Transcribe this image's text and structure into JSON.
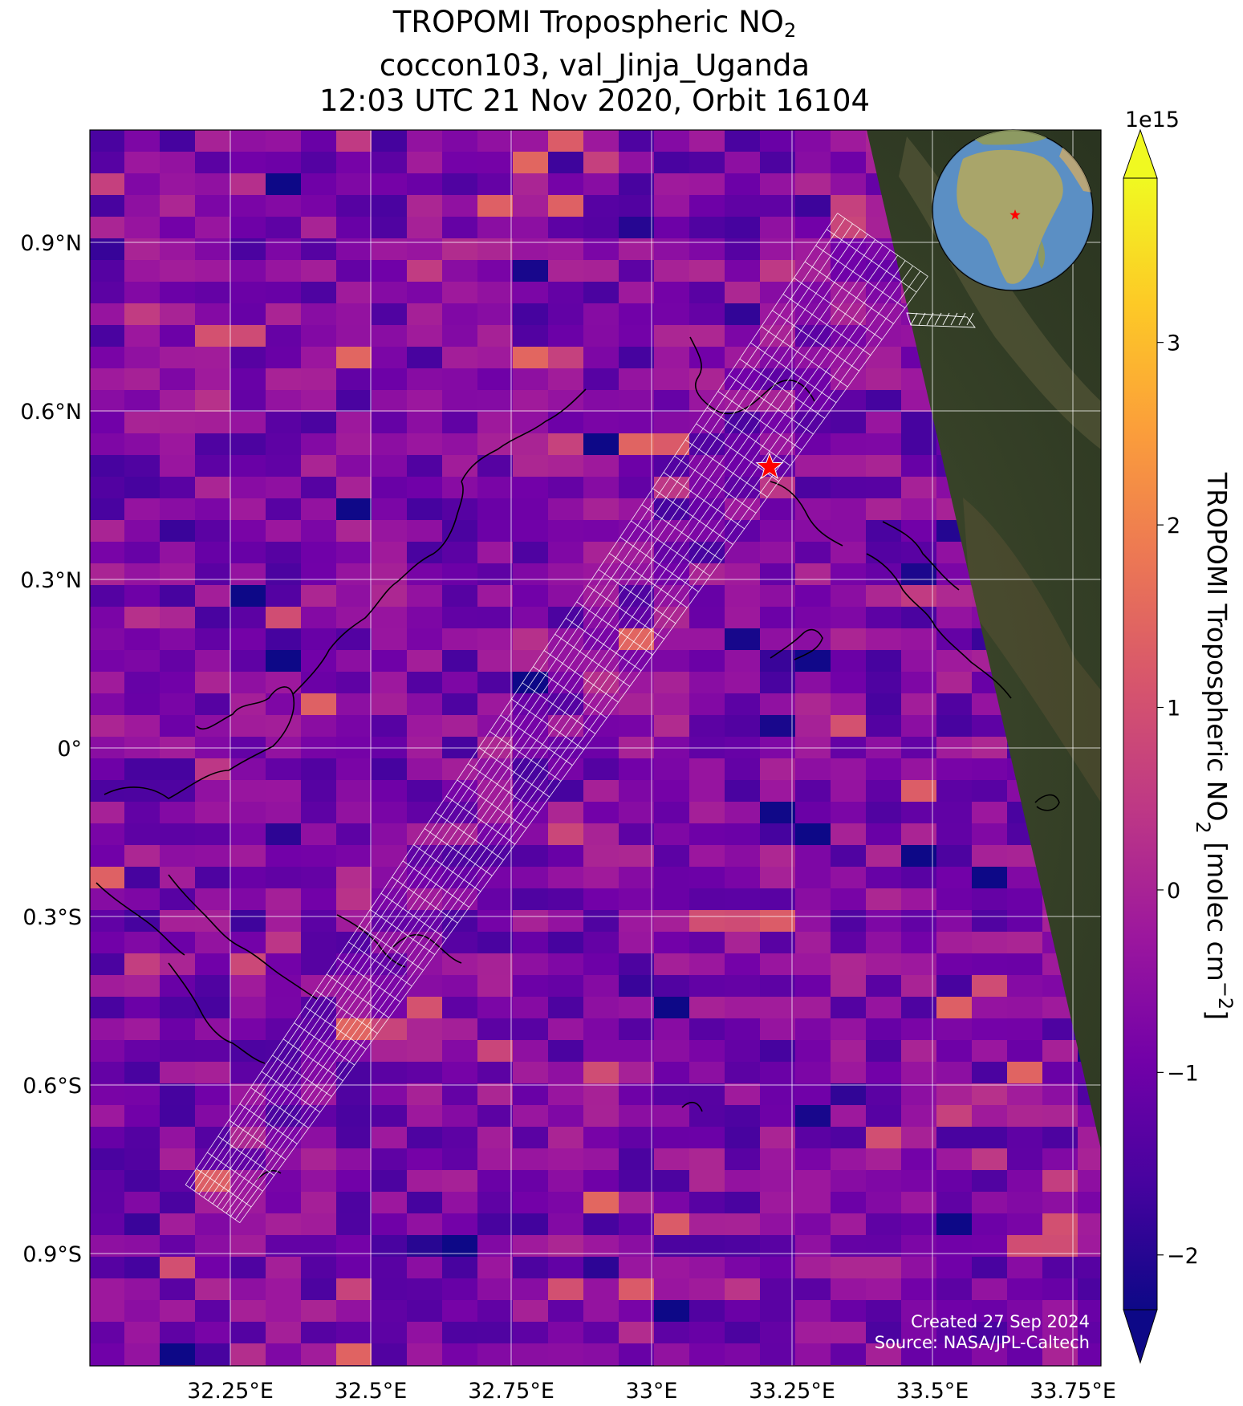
{
  "title": {
    "line1_prefix": "TROPOMI Tropospheric NO",
    "line1_sub": "2",
    "line2": "coccon103, val_Jinja_Uganda",
    "line3": "12:03 UTC 21 Nov 2020, Orbit 16104"
  },
  "map": {
    "lon_range": [
      32.0,
      33.8
    ],
    "lat_range": [
      -1.1,
      1.1
    ],
    "lon_ticks": [
      {
        "value": 32.25,
        "label": "32.25°E"
      },
      {
        "value": 32.5,
        "label": "32.5°E"
      },
      {
        "value": 32.75,
        "label": "32.75°E"
      },
      {
        "value": 33.0,
        "label": "33°E"
      },
      {
        "value": 33.25,
        "label": "33.25°E"
      },
      {
        "value": 33.5,
        "label": "33.5°E"
      },
      {
        "value": 33.75,
        "label": "33.75°E"
      }
    ],
    "lat_ticks": [
      {
        "value": 0.9,
        "label": "0.9°N"
      },
      {
        "value": 0.6,
        "label": "0.6°N"
      },
      {
        "value": 0.3,
        "label": "0.3°N"
      },
      {
        "value": 0.0,
        "label": "0°"
      },
      {
        "value": -0.3,
        "label": "0.3°S"
      },
      {
        "value": -0.6,
        "label": "0.6°S"
      },
      {
        "value": -0.9,
        "label": "0.9°S"
      }
    ],
    "site_marker": {
      "lon": 33.21,
      "lat": 0.5,
      "color": "#ff0000"
    },
    "basemap_color": "#3b4a2c",
    "gridline_color": "#ffffff",
    "credit_line1": "Created 27 Sep 2024",
    "credit_line2": "Source: NASA/JPL-Caltech"
  },
  "colorbar": {
    "colormap": "plasma",
    "vmin": -2.3,
    "vmax": 3.9,
    "exponent_label": "1e15",
    "ticks": [
      {
        "value": -2,
        "label": "−2"
      },
      {
        "value": -1,
        "label": "−1"
      },
      {
        "value": 0,
        "label": "0"
      },
      {
        "value": 1,
        "label": "1"
      },
      {
        "value": 2,
        "label": "2"
      },
      {
        "value": 3,
        "label": "3"
      }
    ],
    "label_prefix": "TROPOMI Tropospheric NO",
    "label_sub": "2",
    "label_mid": " [molec cm",
    "label_sup": "−2",
    "label_suffix": "]",
    "colors": [
      "#0d0887",
      "#46039f",
      "#7201a8",
      "#9c179e",
      "#bd3786",
      "#d8576b",
      "#ed7953",
      "#fb9f3a",
      "#fdca26",
      "#f0f921"
    ]
  },
  "globe_inset": {
    "center": "Africa",
    "ocean_color": "#5b8fc4",
    "land_color": "#8a9a5b",
    "marker_color": "#ff0000"
  }
}
